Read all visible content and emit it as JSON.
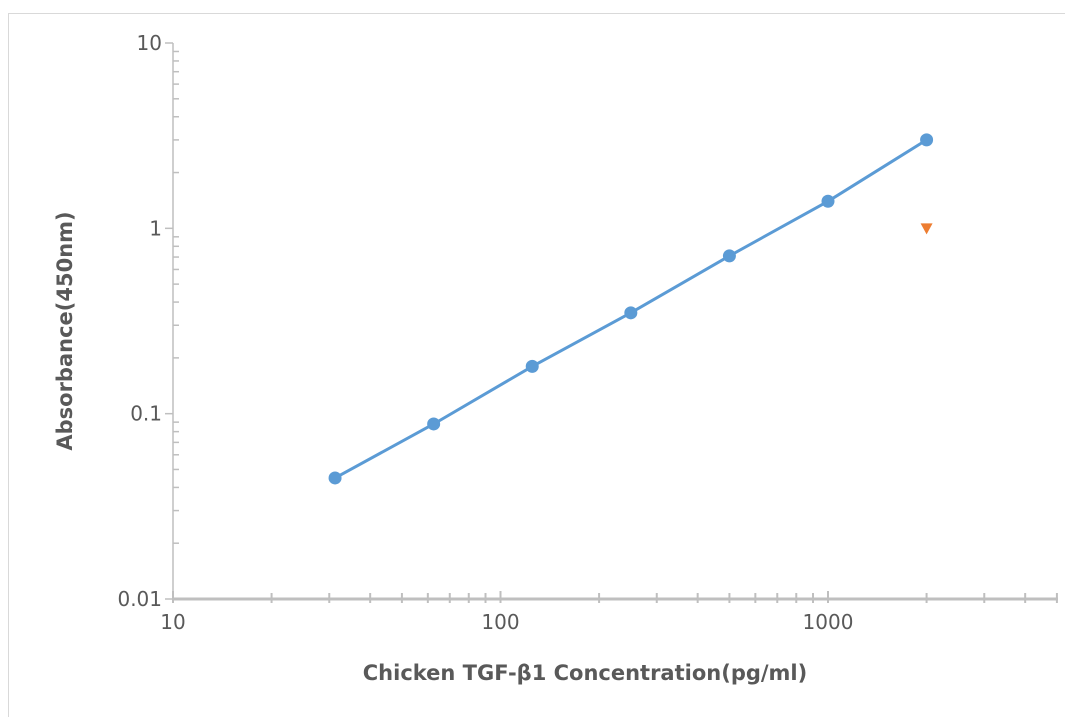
{
  "chart_data": {
    "type": "scatter",
    "xlabel": "Chicken TGF-β1 Concentration(pg/ml)",
    "ylabel": "Absorbance(450nm)",
    "x_scale": "log",
    "y_scale": "log",
    "xlim": [
      10,
      5500
    ],
    "ylim": [
      0.01,
      10
    ],
    "x_ticks": [
      "10",
      "100",
      "1000"
    ],
    "y_ticks": [
      "0.01",
      "0.1",
      "1",
      "10"
    ],
    "grid": false,
    "legend": "none",
    "series": [
      {
        "style": "line-with-circle-markers",
        "color": "#5b9bd5",
        "x": [
          31.25,
          62.5,
          125,
          250,
          500,
          1000,
          2000
        ],
        "y": [
          0.045,
          0.088,
          0.18,
          0.35,
          0.71,
          1.4,
          3.0
        ]
      },
      {
        "style": "triangle-down-marker",
        "color": "#ed7d31",
        "x": [
          2000
        ],
        "y": [
          1.0
        ]
      }
    ]
  }
}
